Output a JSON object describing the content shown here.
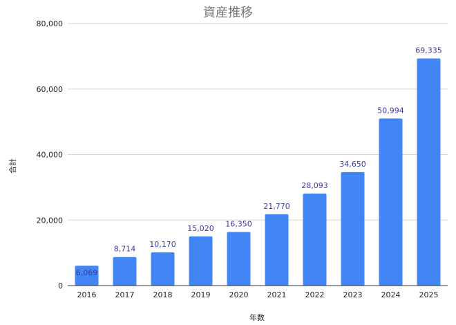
{
  "chart_data": {
    "type": "bar",
    "title": "資産推移",
    "xlabel": "年数",
    "ylabel": "合計",
    "categories": [
      "2016",
      "2017",
      "2018",
      "2019",
      "2020",
      "2021",
      "2022",
      "2023",
      "2024",
      "2025"
    ],
    "values": [
      6069,
      8714,
      10170,
      15020,
      16350,
      21770,
      28093,
      34650,
      50994,
      69335
    ],
    "value_labels": [
      "6,069",
      "8,714",
      "10,170",
      "15,020",
      "16,350",
      "21,770",
      "28,093",
      "34,650",
      "50,994",
      "69,335"
    ],
    "ylim": [
      0,
      80000
    ],
    "yticks": [
      0,
      20000,
      40000,
      60000,
      80000
    ],
    "ytick_labels": [
      "0",
      "20,000",
      "40,000",
      "60,000",
      "80,000"
    ],
    "grid": true,
    "bar_color": "#4285f4",
    "data_label_color": "#3b3b9e"
  }
}
